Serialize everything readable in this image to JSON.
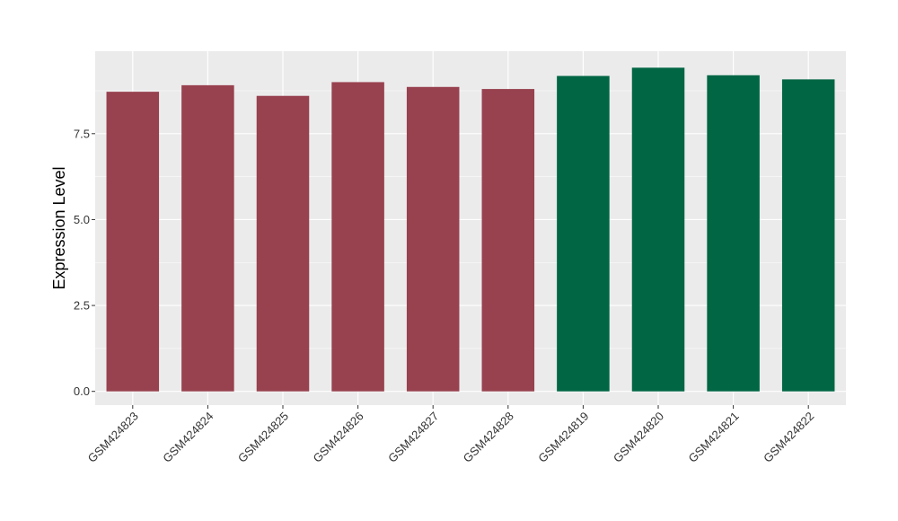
{
  "chart_data": {
    "type": "bar",
    "title": "",
    "xlabel": "",
    "ylabel": "Expression Level",
    "ylim": [
      -0.4,
      9.9
    ],
    "yticks": [
      0.0,
      2.5,
      5.0,
      7.5
    ],
    "ytick_labels": [
      "0.0",
      "2.5",
      "5.0",
      "7.5"
    ],
    "grid": true,
    "legend": "none",
    "categories": [
      "GSM424823",
      "GSM424824",
      "GSM424825",
      "GSM424826",
      "GSM424827",
      "GSM424828",
      "GSM424819",
      "GSM424820",
      "GSM424821",
      "GSM424822"
    ],
    "values": [
      8.72,
      8.91,
      8.6,
      9.0,
      8.86,
      8.8,
      9.18,
      9.42,
      9.2,
      9.08
    ],
    "bar_colors": [
      "#98414f",
      "#98414f",
      "#98414f",
      "#98414f",
      "#98414f",
      "#98414f",
      "#006644",
      "#006644",
      "#006644",
      "#006644"
    ],
    "panel_background": "#ebebeb",
    "grid_color": "#ffffff"
  }
}
